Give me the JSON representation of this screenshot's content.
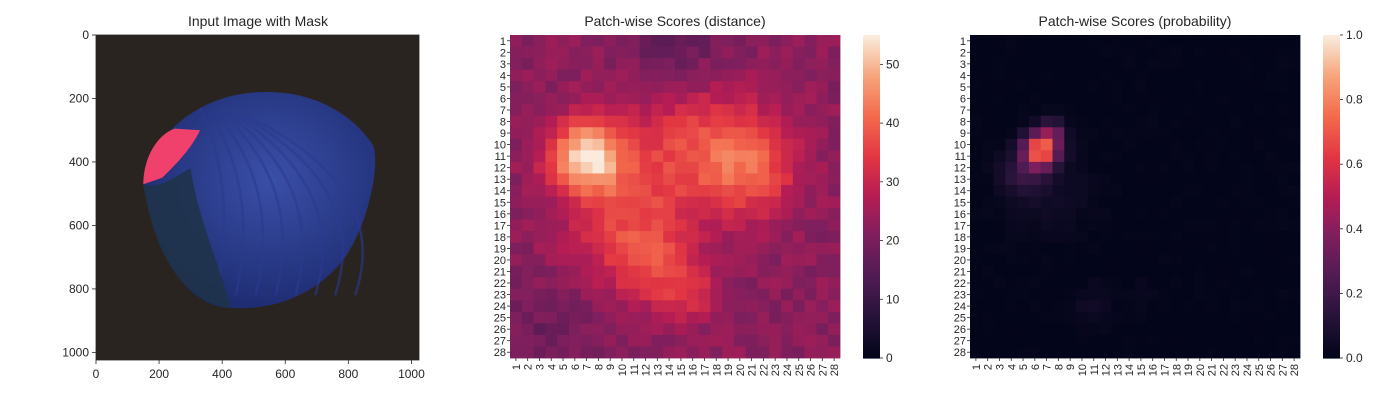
{
  "chart_data": [
    {
      "type": "image",
      "title": "Input Image with Mask",
      "xlim": [
        0,
        1024
      ],
      "ylim": [
        0,
        1024
      ],
      "xticks": [
        0,
        200,
        400,
        600,
        800,
        1000
      ],
      "yticks": [
        0,
        200,
        400,
        600,
        800,
        1000
      ],
      "colors": {
        "background": "#2a2420",
        "object": "#3a4fa8",
        "object_dark": "#1c2a6e",
        "mask": "#f0416c"
      }
    },
    {
      "type": "heatmap",
      "title": "Patch-wise Scores (distance)",
      "rows": 28,
      "cols": 28,
      "tick_labels": [
        "1",
        "2",
        "3",
        "4",
        "5",
        "6",
        "7",
        "8",
        "9",
        "10",
        "11",
        "12",
        "13",
        "14",
        "15",
        "16",
        "17",
        "18",
        "19",
        "20",
        "21",
        "22",
        "23",
        "24",
        "25",
        "26",
        "27",
        "28"
      ],
      "colorbar": {
        "min": 0,
        "max": 55,
        "ticks": [
          0,
          10,
          20,
          30,
          40,
          50
        ]
      },
      "colormap": "rocket",
      "background": 22,
      "blobs": [
        {
          "row": 11,
          "col": 7,
          "peak": 30,
          "sigma": 2.2
        },
        {
          "row": 10,
          "col": 16,
          "peak": 14,
          "sigma": 4.5
        },
        {
          "row": 12,
          "col": 21,
          "peak": 13,
          "sigma": 2.8
        },
        {
          "row": 17,
          "col": 10,
          "peak": 12,
          "sigma": 3.5
        },
        {
          "row": 21,
          "col": 13,
          "peak": 10,
          "sigma": 2.5
        },
        {
          "row": 23,
          "col": 16,
          "peak": 8,
          "sigma": 1.6
        },
        {
          "row": 2,
          "col": 15,
          "peak": -7,
          "sigma": 3.5
        },
        {
          "row": 26,
          "col": 4,
          "peak": -4,
          "sigma": 3.0
        }
      ]
    },
    {
      "type": "heatmap",
      "title": "Patch-wise Scores (probability)",
      "rows": 28,
      "cols": 28,
      "tick_labels": [
        "1",
        "2",
        "3",
        "4",
        "5",
        "6",
        "7",
        "8",
        "9",
        "10",
        "11",
        "12",
        "13",
        "14",
        "15",
        "16",
        "17",
        "18",
        "19",
        "20",
        "21",
        "22",
        "23",
        "24",
        "25",
        "26",
        "27",
        "28"
      ],
      "colorbar": {
        "min": 0.0,
        "max": 1.0,
        "ticks": [
          0.0,
          0.2,
          0.4,
          0.6,
          0.8,
          1.0
        ]
      },
      "colorbar_tick_labels": [
        "0.0",
        "0.2",
        "0.4",
        "0.6",
        "0.8",
        "1.0"
      ],
      "colormap": "rocket",
      "background": 0.0,
      "blobs": [
        {
          "row": 10.5,
          "col": 6.5,
          "peak": 0.78,
          "sigma": 1.0
        },
        {
          "row": 9,
          "col": 7.5,
          "peak": 0.25,
          "sigma": 0.8
        },
        {
          "row": 12.5,
          "col": 5,
          "peak": 0.15,
          "sigma": 1.3
        },
        {
          "row": 14,
          "col": 7,
          "peak": 0.05,
          "sigma": 2.5
        },
        {
          "row": 24,
          "col": 11,
          "peak": 0.05,
          "sigma": 1.2
        },
        {
          "row": 23,
          "col": 15.5,
          "peak": 0.03,
          "sigma": 0.8
        }
      ]
    }
  ]
}
